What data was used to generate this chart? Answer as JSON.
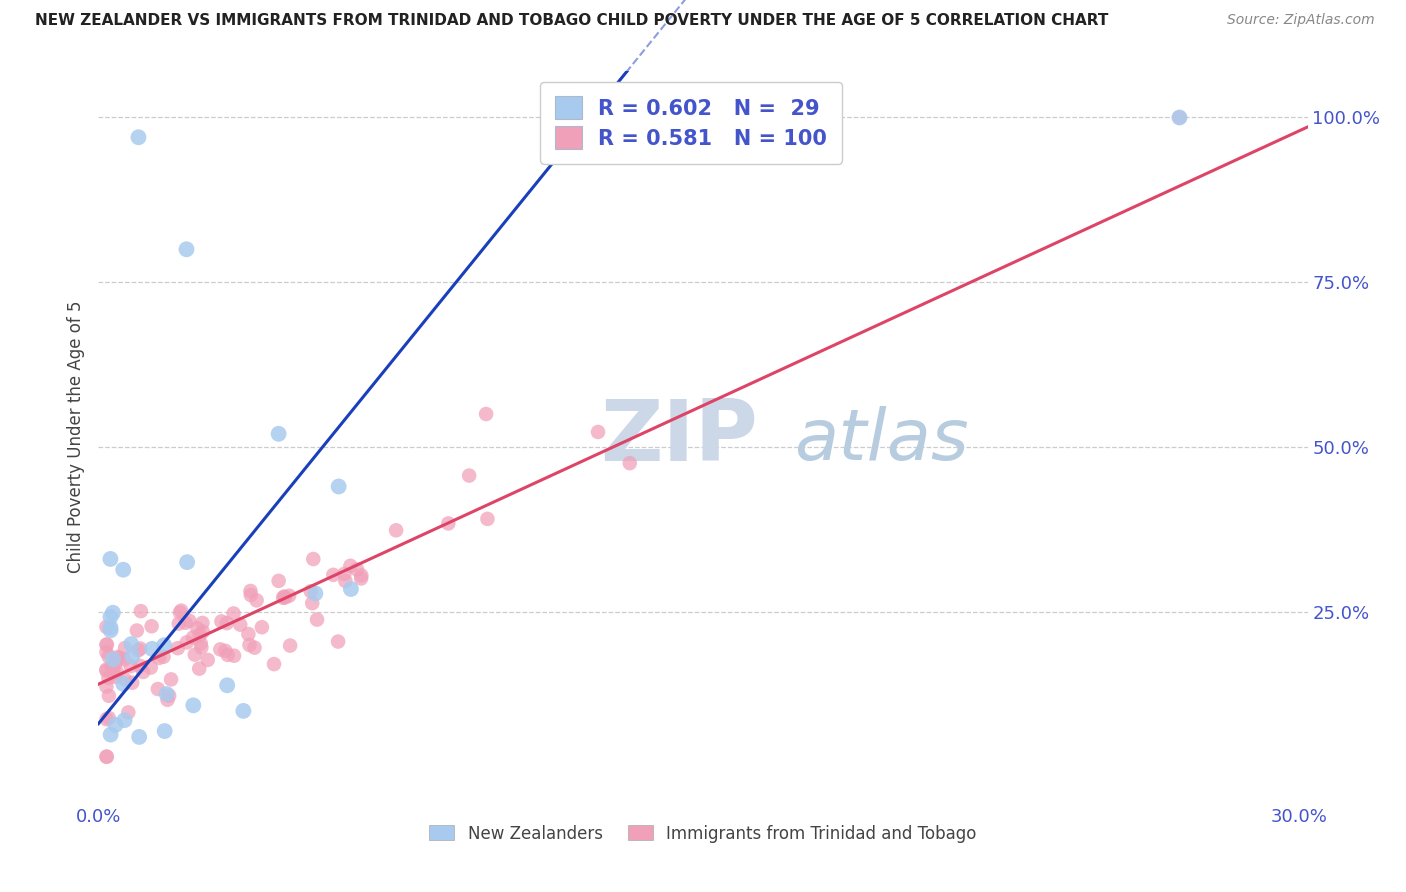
{
  "title": "NEW ZEALANDER VS IMMIGRANTS FROM TRINIDAD AND TOBAGO CHILD POVERTY UNDER THE AGE OF 5 CORRELATION CHART",
  "source": "Source: ZipAtlas.com",
  "ylabel": "Child Poverty Under the Age of 5",
  "legend_blue_r": "0.602",
  "legend_blue_n": "29",
  "legend_pink_r": "0.581",
  "legend_pink_n": "100",
  "legend_label_blue": "New Zealanders",
  "legend_label_pink": "Immigrants from Trinidad and Tobago",
  "blue_color": "#a8caee",
  "pink_color": "#f0a0b8",
  "blue_line_color": "#1a3fbb",
  "pink_line_color": "#dd4466",
  "text_color": "#4455cc",
  "watermark_zip_color": "#ccd8e8",
  "watermark_atlas_color": "#b8cce0",
  "background_color": "#ffffff",
  "grid_color": "#cccccc",
  "title_color": "#222222",
  "source_color": "#888888",
  "ylabel_color": "#444444",
  "bottom_legend_color": "#444444",
  "xlim": [
    0.0,
    0.302
  ],
  "ylim": [
    -0.04,
    1.07
  ],
  "xtick_positions": [
    0.0,
    0.3
  ],
  "xtick_labels": [
    "0.0%",
    "30.0%"
  ],
  "ytick_positions": [
    0.25,
    0.5,
    0.75,
    1.0
  ],
  "ytick_labels": [
    "25.0%",
    "50.0%",
    "75.0%",
    "100.0%"
  ],
  "blue_line_x0": 0.0,
  "blue_line_y0": 0.08,
  "blue_line_slope": 7.5,
  "pink_line_x0": 0.0,
  "pink_line_y0": 0.14,
  "pink_line_slope": 2.8
}
